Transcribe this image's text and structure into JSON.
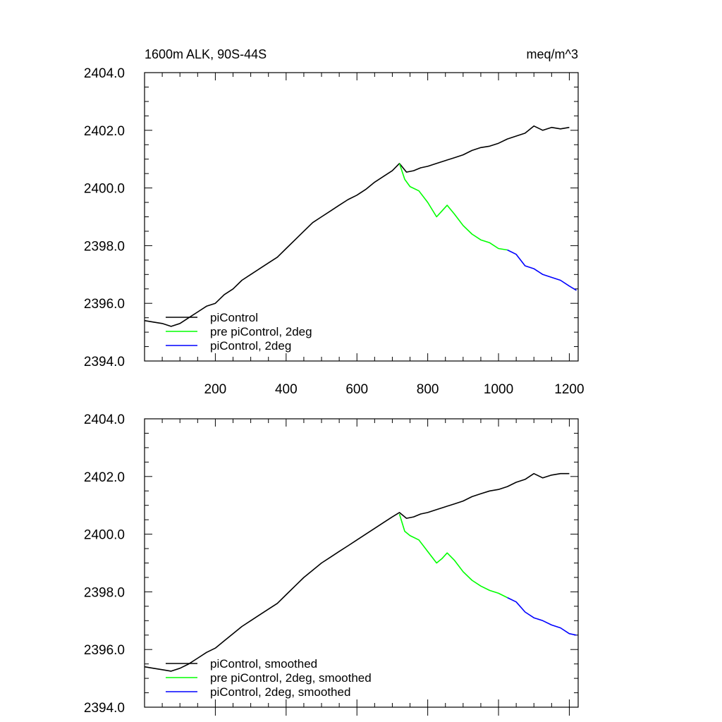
{
  "chart_data": [
    {
      "type": "line",
      "title_left": "1600m ALK, 90S-44S",
      "title_right": "meq/m^3",
      "xlim": [
        0,
        1225
      ],
      "ylim": [
        2394.0,
        2404.0
      ],
      "x_ticks": [
        200,
        400,
        600,
        800,
        1000,
        1200
      ],
      "x_tick_labels": [
        "200",
        "400",
        "600",
        "800",
        "1000",
        "1200"
      ],
      "y_ticks": [
        2394.0,
        2396.0,
        2398.0,
        2400.0,
        2402.0,
        2404.0
      ],
      "y_tick_labels": [
        "2394.0",
        "2396.0",
        "2398.0",
        "2400.0",
        "2402.0",
        "2404.0"
      ],
      "legend_position": "bottom-left",
      "series": [
        {
          "name": "piControl",
          "color": "#000000",
          "x": [
            0,
            25,
            50,
            75,
            100,
            125,
            150,
            175,
            200,
            225,
            250,
            275,
            300,
            325,
            350,
            375,
            400,
            425,
            450,
            475,
            500,
            525,
            550,
            575,
            600,
            625,
            650,
            675,
            700,
            720,
            740,
            760,
            780,
            800,
            825,
            850,
            875,
            900,
            925,
            950,
            975,
            1000,
            1025,
            1050,
            1075,
            1100,
            1125,
            1150,
            1175,
            1200
          ],
          "y": [
            2395.4,
            2395.35,
            2395.3,
            2395.2,
            2395.3,
            2395.5,
            2395.7,
            2395.9,
            2396.0,
            2396.3,
            2396.5,
            2396.8,
            2397.0,
            2397.2,
            2397.4,
            2397.6,
            2397.9,
            2398.2,
            2398.5,
            2398.8,
            2399.0,
            2399.2,
            2399.4,
            2399.6,
            2399.75,
            2399.95,
            2400.2,
            2400.4,
            2400.6,
            2400.85,
            2400.55,
            2400.6,
            2400.7,
            2400.75,
            2400.85,
            2400.95,
            2401.05,
            2401.15,
            2401.3,
            2401.4,
            2401.45,
            2401.55,
            2401.7,
            2401.8,
            2401.9,
            2402.15,
            2402.0,
            2402.1,
            2402.05,
            2402.1
          ]
        },
        {
          "name": "pre piControl, 2deg",
          "color": "#00ff00",
          "x": [
            720,
            735,
            750,
            775,
            800,
            825,
            840,
            855,
            875,
            900,
            925,
            950,
            975,
            1000,
            1025
          ],
          "y": [
            2400.85,
            2400.3,
            2400.05,
            2399.9,
            2399.5,
            2399.0,
            2399.2,
            2399.4,
            2399.1,
            2398.7,
            2398.4,
            2398.2,
            2398.1,
            2397.9,
            2397.85
          ]
        },
        {
          "name": "piControl, 2deg",
          "color": "#0000ff",
          "x": [
            1025,
            1050,
            1075,
            1100,
            1125,
            1150,
            1175,
            1200,
            1220
          ],
          "y": [
            2397.85,
            2397.7,
            2397.3,
            2397.2,
            2397.0,
            2396.9,
            2396.8,
            2396.6,
            2396.45
          ]
        }
      ]
    },
    {
      "type": "line",
      "xlim": [
        0,
        1225
      ],
      "ylim": [
        2394.0,
        2404.0
      ],
      "y_ticks": [
        2394.0,
        2396.0,
        2398.0,
        2400.0,
        2402.0,
        2404.0
      ],
      "y_tick_labels": [
        "2394.0",
        "2396.0",
        "2398.0",
        "2400.0",
        "2402.0",
        "2404.0"
      ],
      "legend_position": "bottom-left",
      "series": [
        {
          "name": "piControl, smoothed",
          "color": "#000000",
          "x": [
            0,
            25,
            50,
            75,
            100,
            125,
            150,
            175,
            200,
            225,
            250,
            275,
            300,
            325,
            350,
            375,
            400,
            425,
            450,
            475,
            500,
            525,
            550,
            575,
            600,
            625,
            650,
            675,
            700,
            720,
            740,
            760,
            780,
            800,
            825,
            850,
            875,
            900,
            925,
            950,
            975,
            1000,
            1025,
            1050,
            1075,
            1100,
            1125,
            1150,
            1175,
            1200
          ],
          "y": [
            2395.4,
            2395.35,
            2395.3,
            2395.25,
            2395.35,
            2395.5,
            2395.7,
            2395.9,
            2396.05,
            2396.3,
            2396.55,
            2396.8,
            2397.0,
            2397.2,
            2397.4,
            2397.6,
            2397.9,
            2398.2,
            2398.5,
            2398.75,
            2399.0,
            2399.2,
            2399.4,
            2399.6,
            2399.8,
            2400.0,
            2400.2,
            2400.4,
            2400.6,
            2400.75,
            2400.55,
            2400.6,
            2400.7,
            2400.75,
            2400.85,
            2400.95,
            2401.05,
            2401.15,
            2401.3,
            2401.4,
            2401.5,
            2401.55,
            2401.65,
            2401.8,
            2401.9,
            2402.1,
            2401.95,
            2402.05,
            2402.1,
            2402.1
          ]
        },
        {
          "name": "pre piControl, 2deg, smoothed",
          "color": "#00ff00",
          "x": [
            720,
            735,
            750,
            775,
            800,
            825,
            840,
            855,
            875,
            900,
            925,
            950,
            975,
            1000,
            1025
          ],
          "y": [
            2400.7,
            2400.1,
            2399.95,
            2399.8,
            2399.4,
            2399.0,
            2399.15,
            2399.35,
            2399.1,
            2398.7,
            2398.4,
            2398.2,
            2398.05,
            2397.95,
            2397.8
          ]
        },
        {
          "name": "piControl, 2deg, smoothed",
          "color": "#0000ff",
          "x": [
            1025,
            1050,
            1075,
            1100,
            1125,
            1150,
            1175,
            1200,
            1220
          ],
          "y": [
            2397.8,
            2397.65,
            2397.3,
            2397.1,
            2397.0,
            2396.85,
            2396.75,
            2396.55,
            2396.5
          ]
        }
      ]
    }
  ]
}
